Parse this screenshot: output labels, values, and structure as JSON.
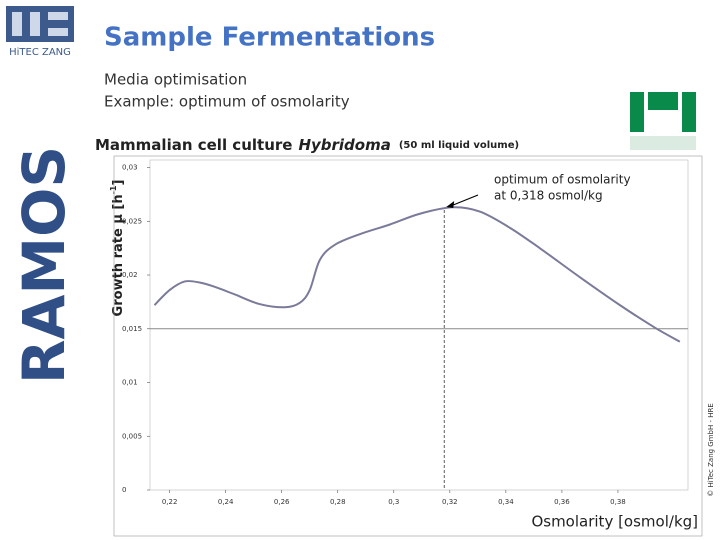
{
  "slide": {
    "title": "Sample Fermentations",
    "subtitle": [
      "Media optimisation",
      "Example: optimum of osmolarity"
    ],
    "logo_left": "HiTEC ZANG",
    "logo_side": "RAMOS",
    "copyright": "© HiTec Zang GmbH - HRE"
  },
  "chart_data": {
    "type": "line",
    "title": [
      "Mammalian cell culture",
      "Hybridoma",
      "(50 ml liquid volume)"
    ],
    "x_label": "Osmolarity [osmol/kg]",
    "y_label": [
      "Growth rate µ [h",
      "-1",
      "]"
    ],
    "annotation": [
      "optimum of osmolarity",
      "at 0,318 osmol/kg"
    ],
    "optimum_x": 0.318,
    "reference_y": 0.015,
    "xlim": [
      0.213,
      0.405
    ],
    "ylim": [
      0,
      0.0307
    ],
    "xticks": [
      {
        "value": 0.22,
        "label": "0,22"
      },
      {
        "value": 0.24,
        "label": "0,24"
      },
      {
        "value": 0.26,
        "label": "0,26"
      },
      {
        "value": 0.28,
        "label": "0,28"
      },
      {
        "value": 0.3,
        "label": "0,3"
      },
      {
        "value": 0.32,
        "label": "0,32"
      },
      {
        "value": 0.34,
        "label": "0,34"
      },
      {
        "value": 0.36,
        "label": "0,36"
      },
      {
        "value": 0.38,
        "label": "0,38"
      }
    ],
    "yticks": [
      0,
      {
        "value": 0.005,
        "label": "0,005"
      },
      {
        "value": 0.01,
        "label": "0,01"
      },
      {
        "value": 0.015,
        "label": "0,015"
      },
      {
        "value": 0.02,
        "label": "0,02"
      },
      {
        "value": 0.025,
        "label": "0,025"
      },
      {
        "value": 0.03,
        "label": "0,03"
      }
    ],
    "series": [
      {
        "color": "#7a7a9a",
        "x": [
          0.2146,
          0.22,
          0.2254,
          0.2307,
          0.2361,
          0.2432,
          0.2521,
          0.2611,
          0.2664,
          0.27,
          0.2736,
          0.2789,
          0.2879,
          0.2986,
          0.3093,
          0.3211,
          0.3307,
          0.3414,
          0.3521,
          0.3664,
          0.3807,
          0.3932,
          0.4021
        ],
        "values": [
          0.0172,
          0.0186,
          0.0194,
          0.0193,
          0.0189,
          0.0182,
          0.0173,
          0.017,
          0.0174,
          0.0186,
          0.0214,
          0.0228,
          0.0238,
          0.0247,
          0.0257,
          0.0263,
          0.0259,
          0.0244,
          0.0225,
          0.0198,
          0.0172,
          0.0151,
          0.0138
        ]
      }
    ]
  }
}
